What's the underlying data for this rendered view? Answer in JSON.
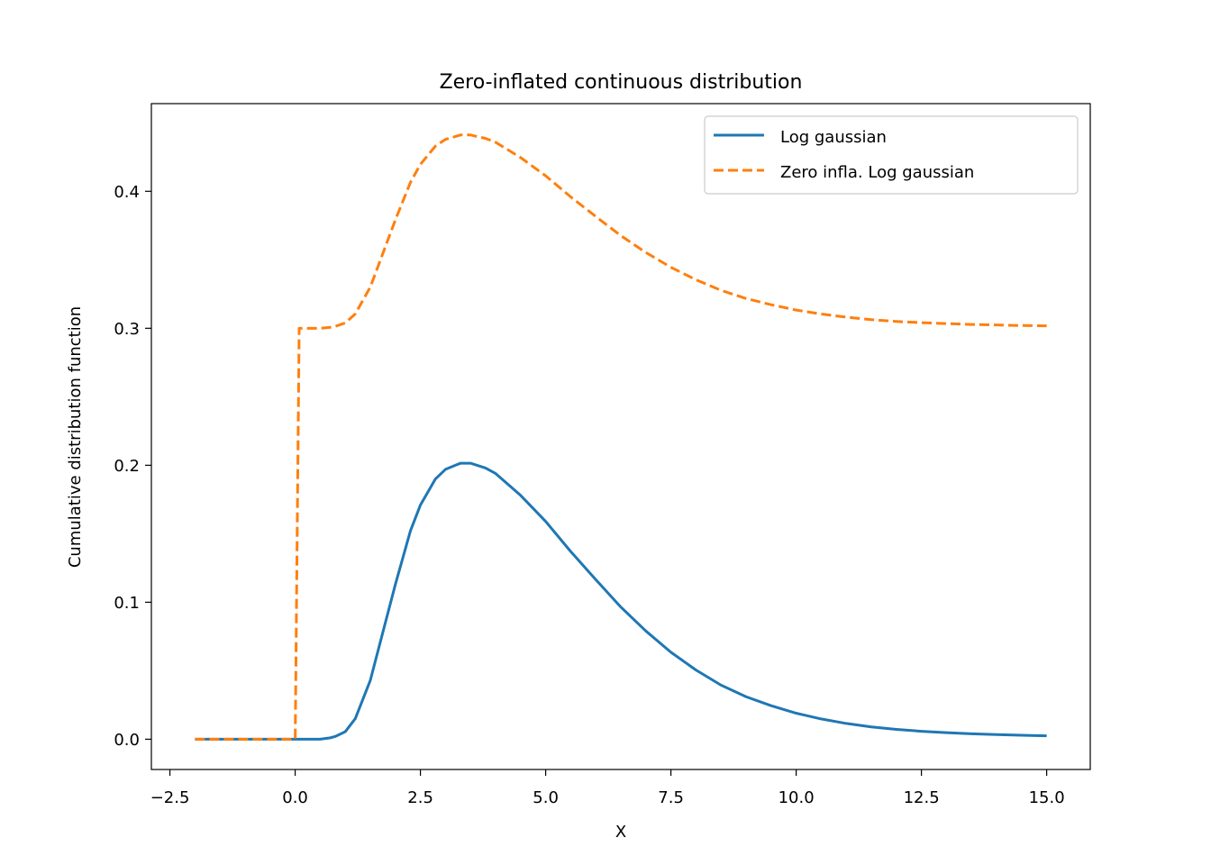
{
  "chart_data": {
    "type": "line",
    "title": "Zero-inflated continuous distribution",
    "xlabel": "X",
    "ylabel": "Cumulative distribution function",
    "xlim": [
      -2.87,
      15.87
    ],
    "ylim": [
      -0.0221,
      0.464
    ],
    "xticks": [
      -2.5,
      0.0,
      2.5,
      5.0,
      7.5,
      10.0,
      12.5,
      15.0
    ],
    "xtick_labels": [
      "−2.5",
      "0.0",
      "2.5",
      "5.0",
      "7.5",
      "10.0",
      "12.5",
      "15.0"
    ],
    "yticks": [
      0.0,
      0.1,
      0.2,
      0.3,
      0.4
    ],
    "ytick_labels": [
      "0.0",
      "0.1",
      "0.2",
      "0.3",
      "0.4"
    ],
    "grid": false,
    "legend_position": "top-right",
    "series": [
      {
        "name": "Log gaussian",
        "color": "#1f77b4",
        "style": "solid",
        "x": [
          -2,
          -1,
          0,
          0.5,
          0.7,
          0.8,
          1.0,
          1.2,
          1.5,
          1.8,
          2.0,
          2.3,
          2.5,
          2.8,
          3.0,
          3.3,
          3.5,
          3.8,
          4.0,
          4.5,
          5.0,
          5.5,
          6.0,
          6.5,
          7.0,
          7.5,
          8.0,
          8.5,
          9.0,
          9.5,
          10.0,
          10.5,
          11.0,
          11.5,
          12.0,
          12.5,
          13.0,
          13.5,
          14.0,
          14.5,
          15.0
        ],
        "y": [
          0.0,
          0.0,
          0.0,
          0.0,
          0.001,
          0.002,
          0.0055,
          0.015,
          0.043,
          0.085,
          0.113,
          0.152,
          0.171,
          0.19,
          0.197,
          0.2015,
          0.2015,
          0.198,
          0.194,
          0.178,
          0.159,
          0.137,
          0.1165,
          0.0965,
          0.079,
          0.0635,
          0.0505,
          0.0395,
          0.031,
          0.0245,
          0.019,
          0.0148,
          0.0115,
          0.009,
          0.0072,
          0.0058,
          0.0048,
          0.004,
          0.0034,
          0.0029,
          0.0025
        ]
      },
      {
        "name": "Zero infla. Log gaussian",
        "color": "#ff7f0e",
        "style": "dashed",
        "x": [
          -2,
          -1,
          0,
          0.001,
          0.08,
          0.5,
          0.7,
          0.8,
          1.0,
          1.2,
          1.5,
          1.8,
          2.0,
          2.3,
          2.5,
          2.8,
          3.0,
          3.3,
          3.5,
          3.8,
          4.0,
          4.5,
          5.0,
          5.5,
          6.0,
          6.5,
          7.0,
          7.5,
          8.0,
          8.5,
          9.0,
          9.5,
          10.0,
          10.5,
          11.0,
          11.5,
          12.0,
          12.5,
          13.0,
          13.5,
          14.0,
          14.5,
          15.0
        ],
        "y": [
          0.0,
          0.0,
          0.0,
          0.0,
          0.3,
          0.3,
          0.3007,
          0.3014,
          0.3039,
          0.3105,
          0.3301,
          0.3595,
          0.3791,
          0.4064,
          0.4197,
          0.433,
          0.4379,
          0.4411,
          0.4411,
          0.4386,
          0.4358,
          0.4246,
          0.4113,
          0.3959,
          0.3816,
          0.3676,
          0.3553,
          0.3445,
          0.3354,
          0.3277,
          0.3217,
          0.3172,
          0.3133,
          0.3104,
          0.3081,
          0.3063,
          0.305,
          0.3041,
          0.3034,
          0.3028,
          0.3024,
          0.302,
          0.3018
        ]
      }
    ]
  }
}
